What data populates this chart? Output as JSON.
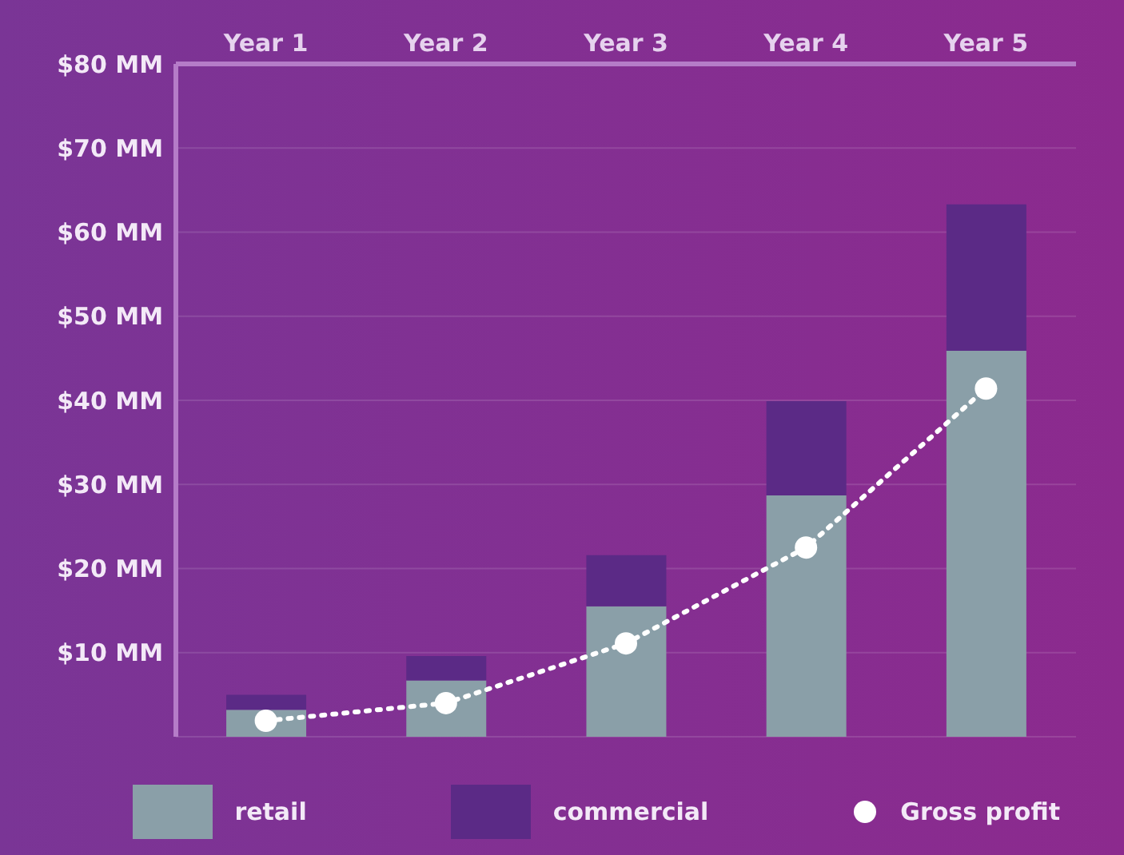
{
  "chart_data": {
    "type": "bar",
    "stacked": true,
    "categories": [
      "Year 1",
      "Year 2",
      "Year 3",
      "Year 4",
      "Year 5"
    ],
    "series": [
      {
        "name": "retail",
        "color": "#8a9fa8",
        "values": [
          3.2,
          6.7,
          15.5,
          28.7,
          45.9
        ]
      },
      {
        "name": "commercial",
        "color": "#5b2a86",
        "values": [
          1.8,
          2.9,
          6.1,
          11.2,
          17.4
        ]
      },
      {
        "name": "Gross profit",
        "type": "line",
        "color": "#ffffff",
        "line_style": "dotted",
        "marker": "circle",
        "values": [
          1.9,
          4.0,
          11.1,
          22.5,
          41.4
        ]
      }
    ],
    "ylim": [
      0,
      80
    ],
    "yticks": [
      {
        "value": 10,
        "label": "$10 MM"
      },
      {
        "value": 20,
        "label": "$20 MM"
      },
      {
        "value": 30,
        "label": "$30 MM"
      },
      {
        "value": 40,
        "label": "$40 MM"
      },
      {
        "value": 50,
        "label": "$50 MM"
      },
      {
        "value": 60,
        "label": "$60 MM"
      },
      {
        "value": 70,
        "label": "$70 MM"
      },
      {
        "value": 80,
        "label": "$80 MM"
      }
    ],
    "grid": "y",
    "legend": "bottom"
  }
}
